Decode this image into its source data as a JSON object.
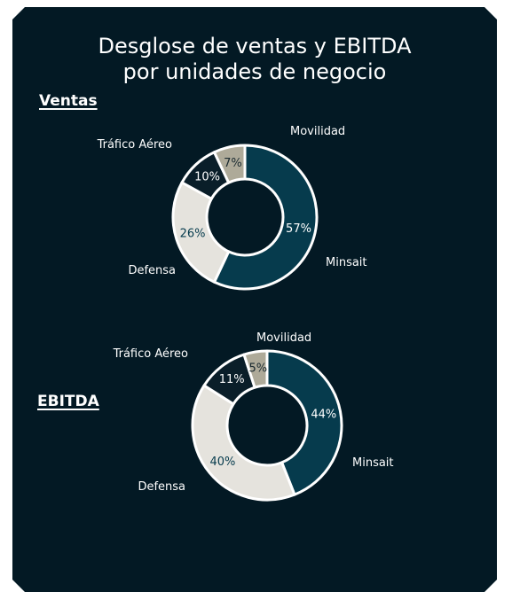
{
  "title_line1": "Desglose de ventas y EBITDA",
  "title_line2": "por unidades de negocio",
  "colors": {
    "background": "#031924",
    "Minsait": "#063B4D",
    "Defensa": "#E5E3DD",
    "Tráfico Aéreo": "#0A1E29",
    "Movilidad": "#AEAA99"
  },
  "chart_data": [
    {
      "type": "pie",
      "title": "Ventas",
      "categories": [
        "Minsait",
        "Defensa",
        "Tráfico Aéreo",
        "Movilidad"
      ],
      "values": [
        57,
        26,
        10,
        7
      ],
      "value_labels": [
        "57%",
        "26%",
        "10%",
        "7%"
      ]
    },
    {
      "type": "pie",
      "title": "EBITDA",
      "categories": [
        "Minsait",
        "Defensa",
        "Tráfico Aéreo",
        "Movilidad"
      ],
      "values": [
        44,
        40,
        11,
        5
      ],
      "value_labels": [
        "44%",
        "40%",
        "11%",
        "5%"
      ]
    }
  ]
}
